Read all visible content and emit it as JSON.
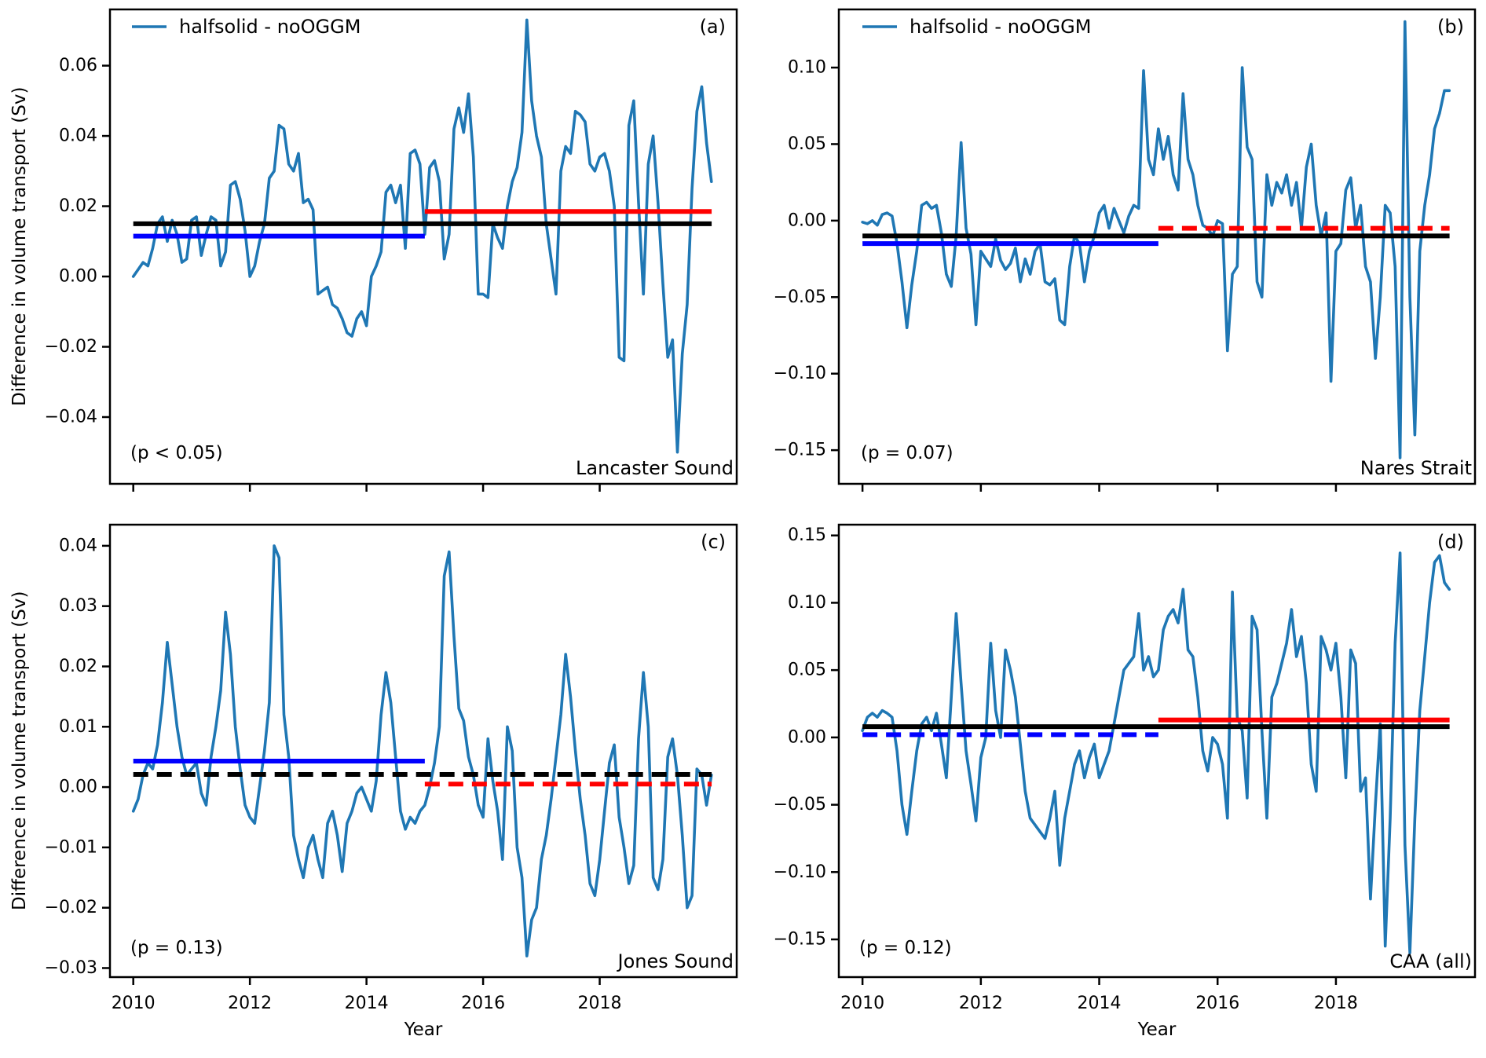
{
  "figure": {
    "ylabel": "Difference in volume transport (Sv)",
    "xlabel": "Year",
    "legend_label": "halfsolid - noOGGM",
    "series_color": "#1f77b4",
    "ref_colors": {
      "all": "#000000",
      "first_half": "#0000ff",
      "second_half": "#ff0000"
    }
  },
  "chart_data": [
    {
      "type": "line",
      "id": "lancaster-sound",
      "panel_label": "(a)",
      "region": "Lancaster Sound",
      "p_text": "(p < 0.05)",
      "legend": "halfsolid - noOGGM",
      "xlim": [
        2009.6,
        2020.35
      ],
      "ylim": [
        -0.059,
        0.076
      ],
      "xticks": [
        2010,
        2012,
        2014,
        2016,
        2018
      ],
      "xtick_labels": null,
      "yticks": [
        0.06,
        0.04,
        0.02,
        0.0,
        -0.02,
        -0.04
      ],
      "ytick_labels": [
        "0.06",
        "0.04",
        "0.02",
        "0.00",
        "−0.02",
        "−0.04"
      ],
      "series": {
        "name": "halfsolid - noOGGM",
        "x_start": 2010.0,
        "x_step": 0.083333,
        "values": [
          0.0,
          0.002,
          0.004,
          0.003,
          0.008,
          0.015,
          0.017,
          0.01,
          0.016,
          0.012,
          0.004,
          0.005,
          0.016,
          0.017,
          0.006,
          0.012,
          0.017,
          0.016,
          0.003,
          0.007,
          0.026,
          0.027,
          0.022,
          0.013,
          0.0,
          0.003,
          0.01,
          0.015,
          0.028,
          0.03,
          0.043,
          0.042,
          0.032,
          0.03,
          0.035,
          0.021,
          0.022,
          0.019,
          -0.005,
          -0.004,
          -0.003,
          -0.008,
          -0.009,
          -0.012,
          -0.016,
          -0.017,
          -0.012,
          -0.01,
          -0.014,
          0.0,
          0.003,
          0.007,
          0.024,
          0.026,
          0.021,
          0.026,
          0.008,
          0.035,
          0.036,
          0.032,
          0.012,
          0.031,
          0.033,
          0.027,
          0.005,
          0.012,
          0.042,
          0.048,
          0.041,
          0.052,
          0.034,
          -0.005,
          -0.005,
          -0.006,
          0.015,
          0.011,
          0.008,
          0.02,
          0.027,
          0.031,
          0.041,
          0.073,
          0.05,
          0.04,
          0.034,
          0.015,
          0.005,
          -0.005,
          0.03,
          0.037,
          0.035,
          0.047,
          0.046,
          0.044,
          0.032,
          0.03,
          0.034,
          0.035,
          0.03,
          0.02,
          -0.023,
          -0.024,
          0.043,
          0.05,
          0.021,
          -0.005,
          0.032,
          0.04,
          0.021,
          -0.002,
          -0.023,
          -0.018,
          -0.05,
          -0.022,
          -0.008,
          0.025,
          0.047,
          0.054,
          0.038,
          0.027
        ]
      },
      "ref_lines": [
        {
          "name": "mean-2010-2020",
          "color": "#000000",
          "style": "solid",
          "x": [
            2010.0,
            2019.92
          ],
          "y": 0.015
        },
        {
          "name": "mean-2010-2015",
          "color": "#0000ff",
          "style": "solid",
          "x": [
            2010.0,
            2015.0
          ],
          "y": 0.0115
        },
        {
          "name": "mean-2015-2020",
          "color": "#ff0000",
          "style": "solid",
          "x": [
            2015.0,
            2019.92
          ],
          "y": 0.0185
        }
      ]
    },
    {
      "type": "line",
      "id": "nares-strait",
      "panel_label": "(b)",
      "region": "Nares Strait",
      "p_text": "(p = 0.07)",
      "legend": "halfsolid - noOGGM",
      "xlim": [
        2009.6,
        2020.35
      ],
      "ylim": [
        -0.172,
        0.138
      ],
      "xticks": [
        2010,
        2012,
        2014,
        2016,
        2018
      ],
      "xtick_labels": null,
      "yticks": [
        0.1,
        0.05,
        0.0,
        -0.05,
        -0.1,
        -0.15
      ],
      "ytick_labels": [
        "0.10",
        "0.05",
        "0.00",
        "−0.05",
        "−0.10",
        "−0.15"
      ],
      "series": {
        "name": "halfsolid - noOGGM",
        "x_start": 2010.0,
        "x_step": 0.083333,
        "values": [
          -0.001,
          -0.002,
          0.0,
          -0.003,
          0.004,
          0.005,
          0.003,
          -0.015,
          -0.04,
          -0.07,
          -0.042,
          -0.02,
          0.01,
          0.012,
          0.008,
          0.01,
          -0.008,
          -0.035,
          -0.043,
          -0.01,
          0.051,
          -0.005,
          -0.022,
          -0.068,
          -0.02,
          -0.025,
          -0.03,
          -0.012,
          -0.026,
          -0.032,
          -0.028,
          -0.018,
          -0.04,
          -0.025,
          -0.035,
          -0.02,
          -0.015,
          -0.04,
          -0.042,
          -0.038,
          -0.065,
          -0.068,
          -0.03,
          -0.01,
          -0.015,
          -0.04,
          -0.02,
          -0.01,
          0.005,
          0.01,
          -0.005,
          0.008,
          0.0,
          -0.008,
          0.003,
          0.01,
          0.008,
          0.098,
          0.04,
          0.03,
          0.06,
          0.04,
          0.055,
          0.03,
          0.02,
          0.083,
          0.04,
          0.03,
          0.01,
          -0.003,
          -0.005,
          -0.01,
          0.0,
          -0.002,
          -0.085,
          -0.035,
          -0.03,
          0.1,
          0.048,
          0.04,
          -0.04,
          -0.05,
          0.03,
          0.01,
          0.025,
          0.018,
          0.03,
          0.01,
          0.025,
          -0.005,
          0.035,
          0.05,
          0.01,
          -0.01,
          0.005,
          -0.105,
          -0.02,
          -0.015,
          0.02,
          0.028,
          -0.005,
          0.01,
          -0.03,
          -0.04,
          -0.09,
          -0.05,
          0.01,
          0.005,
          -0.03,
          -0.155,
          0.13,
          -0.05,
          -0.14,
          -0.02,
          0.01,
          0.03,
          0.06,
          0.07,
          0.085,
          0.085
        ]
      },
      "ref_lines": [
        {
          "name": "mean-2010-2020",
          "color": "#000000",
          "style": "solid",
          "x": [
            2010.0,
            2019.92
          ],
          "y": -0.01
        },
        {
          "name": "mean-2010-2015",
          "color": "#0000ff",
          "style": "solid",
          "x": [
            2010.0,
            2015.0
          ],
          "y": -0.015
        },
        {
          "name": "mean-2015-2020",
          "color": "#ff0000",
          "style": "dashed",
          "x": [
            2015.0,
            2019.92
          ],
          "y": -0.005
        }
      ]
    },
    {
      "type": "line",
      "id": "jones-sound",
      "panel_label": "(c)",
      "region": "Jones Sound",
      "p_text": "(p = 0.13)",
      "legend": null,
      "xlim": [
        2009.6,
        2020.35
      ],
      "ylim": [
        -0.0315,
        0.0435
      ],
      "xticks": [
        2010,
        2012,
        2014,
        2016,
        2018
      ],
      "xtick_labels": [
        "2010",
        "2012",
        "2014",
        "2016",
        "2018"
      ],
      "yticks": [
        0.04,
        0.03,
        0.02,
        0.01,
        0.0,
        -0.01,
        -0.02,
        -0.03
      ],
      "ytick_labels": [
        "0.04",
        "0.03",
        "0.02",
        "0.01",
        "0.00",
        "−0.01",
        "−0.02",
        "−0.03"
      ],
      "series": {
        "name": "halfsolid - noOGGM",
        "x_start": 2010.0,
        "x_step": 0.083333,
        "values": [
          -0.004,
          -0.002,
          0.002,
          0.004,
          0.003,
          0.007,
          0.014,
          0.024,
          0.017,
          0.01,
          0.005,
          0.002,
          0.003,
          0.004,
          -0.001,
          -0.003,
          0.005,
          0.01,
          0.016,
          0.029,
          0.022,
          0.01,
          0.003,
          -0.003,
          -0.005,
          -0.006,
          0.0,
          0.006,
          0.014,
          0.04,
          0.038,
          0.012,
          0.005,
          -0.008,
          -0.012,
          -0.015,
          -0.01,
          -0.008,
          -0.012,
          -0.015,
          -0.006,
          -0.004,
          -0.008,
          -0.014,
          -0.006,
          -0.004,
          -0.001,
          0.0,
          -0.002,
          -0.004,
          0.001,
          0.012,
          0.019,
          0.014,
          0.005,
          -0.004,
          -0.007,
          -0.005,
          -0.006,
          -0.004,
          -0.003,
          0.0,
          0.004,
          0.01,
          0.035,
          0.039,
          0.025,
          0.013,
          0.011,
          0.005,
          0.002,
          -0.003,
          -0.005,
          0.008,
          0.001,
          -0.004,
          -0.012,
          0.01,
          0.006,
          -0.01,
          -0.015,
          -0.028,
          -0.022,
          -0.02,
          -0.012,
          -0.008,
          -0.002,
          0.005,
          0.012,
          0.022,
          0.015,
          0.006,
          -0.002,
          -0.008,
          -0.016,
          -0.018,
          -0.012,
          -0.004,
          0.004,
          0.007,
          -0.005,
          -0.01,
          -0.016,
          -0.013,
          0.008,
          0.019,
          0.01,
          -0.015,
          -0.017,
          -0.012,
          0.005,
          0.008,
          0.002,
          -0.008,
          -0.02,
          -0.018,
          0.003,
          0.002,
          -0.003,
          0.002
        ]
      },
      "ref_lines": [
        {
          "name": "mean-2010-2020",
          "color": "#000000",
          "style": "dashed",
          "x": [
            2010.0,
            2019.92
          ],
          "y": 0.0021
        },
        {
          "name": "mean-2010-2015",
          "color": "#0000ff",
          "style": "solid",
          "x": [
            2010.0,
            2015.0
          ],
          "y": 0.0043
        },
        {
          "name": "mean-2015-2020",
          "color": "#ff0000",
          "style": "dashed",
          "x": [
            2015.0,
            2019.92
          ],
          "y": 0.0005
        }
      ]
    },
    {
      "type": "line",
      "id": "caa-all",
      "panel_label": "(d)",
      "region": "CAA (all)",
      "p_text": "(p = 0.12)",
      "legend": null,
      "xlim": [
        2009.6,
        2020.35
      ],
      "ylim": [
        -0.178,
        0.158
      ],
      "xticks": [
        2010,
        2012,
        2014,
        2016,
        2018
      ],
      "xtick_labels": [
        "2010",
        "2012",
        "2014",
        "2016",
        "2018"
      ],
      "yticks": [
        0.15,
        0.1,
        0.05,
        0.0,
        -0.05,
        -0.1,
        -0.15
      ],
      "ytick_labels": [
        "0.15",
        "0.10",
        "0.05",
        "0.00",
        "−0.05",
        "−0.10",
        "−0.15"
      ],
      "series": {
        "name": "halfsolid - noOGGM",
        "x_start": 2010.0,
        "x_step": 0.083333,
        "values": [
          0.005,
          0.015,
          0.018,
          0.015,
          0.02,
          0.018,
          0.015,
          -0.01,
          -0.05,
          -0.072,
          -0.04,
          -0.01,
          0.01,
          0.015,
          0.005,
          0.018,
          -0.005,
          -0.03,
          0.03,
          0.092,
          0.04,
          -0.01,
          -0.035,
          -0.062,
          -0.015,
          0.0,
          0.07,
          0.02,
          0.0,
          0.065,
          0.05,
          0.03,
          -0.005,
          -0.04,
          -0.06,
          -0.065,
          -0.07,
          -0.075,
          -0.06,
          -0.04,
          -0.095,
          -0.06,
          -0.04,
          -0.02,
          -0.01,
          -0.03,
          -0.015,
          -0.005,
          -0.03,
          -0.02,
          -0.01,
          0.01,
          0.03,
          0.05,
          0.055,
          0.06,
          0.092,
          0.05,
          0.06,
          0.045,
          0.05,
          0.08,
          0.09,
          0.095,
          0.085,
          0.11,
          0.065,
          0.06,
          0.03,
          -0.01,
          -0.025,
          0.0,
          -0.005,
          -0.02,
          -0.06,
          0.108,
          0.015,
          0.005,
          -0.045,
          0.09,
          0.08,
          0.005,
          -0.06,
          0.03,
          0.04,
          0.055,
          0.07,
          0.095,
          0.06,
          0.075,
          0.04,
          -0.02,
          -0.04,
          0.075,
          0.065,
          0.05,
          0.07,
          0.03,
          -0.03,
          0.065,
          0.055,
          -0.04,
          -0.03,
          -0.12,
          -0.05,
          0.01,
          -0.155,
          -0.06,
          0.07,
          0.137,
          -0.08,
          -0.16,
          -0.06,
          0.02,
          0.06,
          0.1,
          0.13,
          0.135,
          0.115,
          0.11
        ]
      },
      "ref_lines": [
        {
          "name": "mean-2010-2020",
          "color": "#000000",
          "style": "solid",
          "x": [
            2010.0,
            2019.92
          ],
          "y": 0.008
        },
        {
          "name": "mean-2010-2015",
          "color": "#0000ff",
          "style": "dashed",
          "x": [
            2010.0,
            2015.0
          ],
          "y": 0.002
        },
        {
          "name": "mean-2015-2020",
          "color": "#ff0000",
          "style": "solid",
          "x": [
            2015.0,
            2019.92
          ],
          "y": 0.013
        }
      ]
    }
  ]
}
